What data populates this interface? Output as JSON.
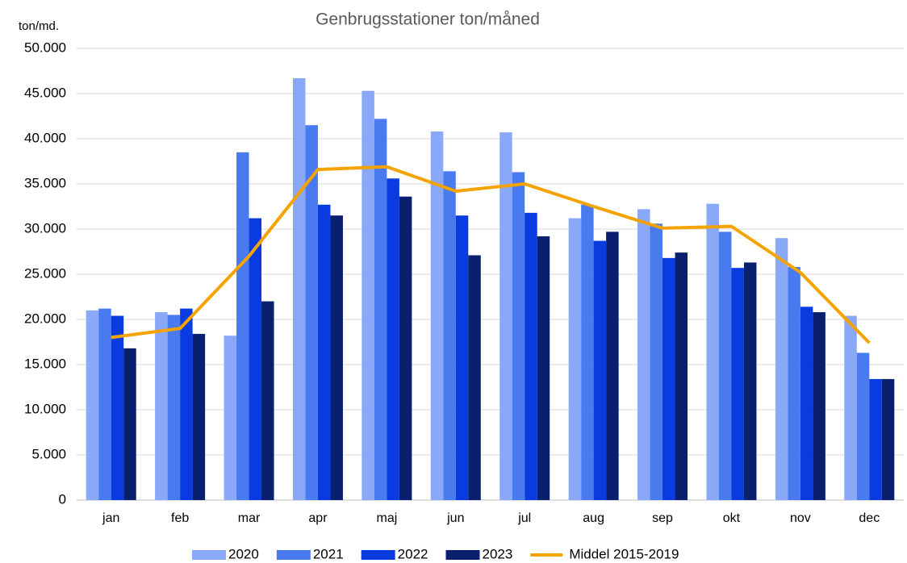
{
  "chart_data": {
    "type": "bar",
    "title": "Genbrugsstationer ton/måned",
    "y_label": "ton/md.",
    "categories": [
      "jan",
      "feb",
      "mar",
      "apr",
      "maj",
      "jun",
      "jul",
      "aug",
      "sep",
      "okt",
      "nov",
      "dec"
    ],
    "series": [
      {
        "name": "2020",
        "color": "#8aa8f8",
        "values": [
          21000,
          20800,
          18200,
          46700,
          45300,
          40800,
          40700,
          31200,
          32200,
          32800,
          29000,
          20400
        ]
      },
      {
        "name": "2021",
        "color": "#4a7af0",
        "values": [
          21200,
          20500,
          38500,
          41500,
          42200,
          36400,
          36300,
          32700,
          30600,
          29700,
          25800,
          16300
        ]
      },
      {
        "name": "2022",
        "color": "#0a3be0",
        "values": [
          20400,
          21200,
          31200,
          32700,
          35600,
          31500,
          31800,
          28700,
          26800,
          25700,
          21400,
          13400
        ]
      },
      {
        "name": "2023",
        "color": "#0a1f6e",
        "values": [
          16800,
          18400,
          22000,
          31500,
          33600,
          27100,
          29200,
          29700,
          27400,
          26300,
          20800,
          13400
        ]
      },
      {
        "name": "Middel 2015-2019",
        "type": "line",
        "color": "#f5a300",
        "values": [
          18000,
          19000,
          27000,
          36600,
          36900,
          34200,
          35000,
          32500,
          30100,
          30300,
          25200,
          17400
        ]
      }
    ],
    "ylim": [
      0,
      50000
    ],
    "yticks": [
      0,
      {
        "value": 5000,
        "label": "5.000"
      },
      {
        "value": 10000,
        "label": "10.000"
      },
      {
        "value": 15000,
        "label": "15.000"
      },
      {
        "value": 20000,
        "label": "20.000"
      },
      {
        "value": 25000,
        "label": "25.000"
      },
      {
        "value": 30000,
        "label": "30.000"
      },
      {
        "value": 35000,
        "label": "35.000"
      },
      {
        "value": 40000,
        "label": "40.000"
      },
      {
        "value": 45000,
        "label": "45.000"
      },
      {
        "value": 50000,
        "label": "50.000"
      }
    ],
    "grid": true,
    "legend": "bottom"
  }
}
